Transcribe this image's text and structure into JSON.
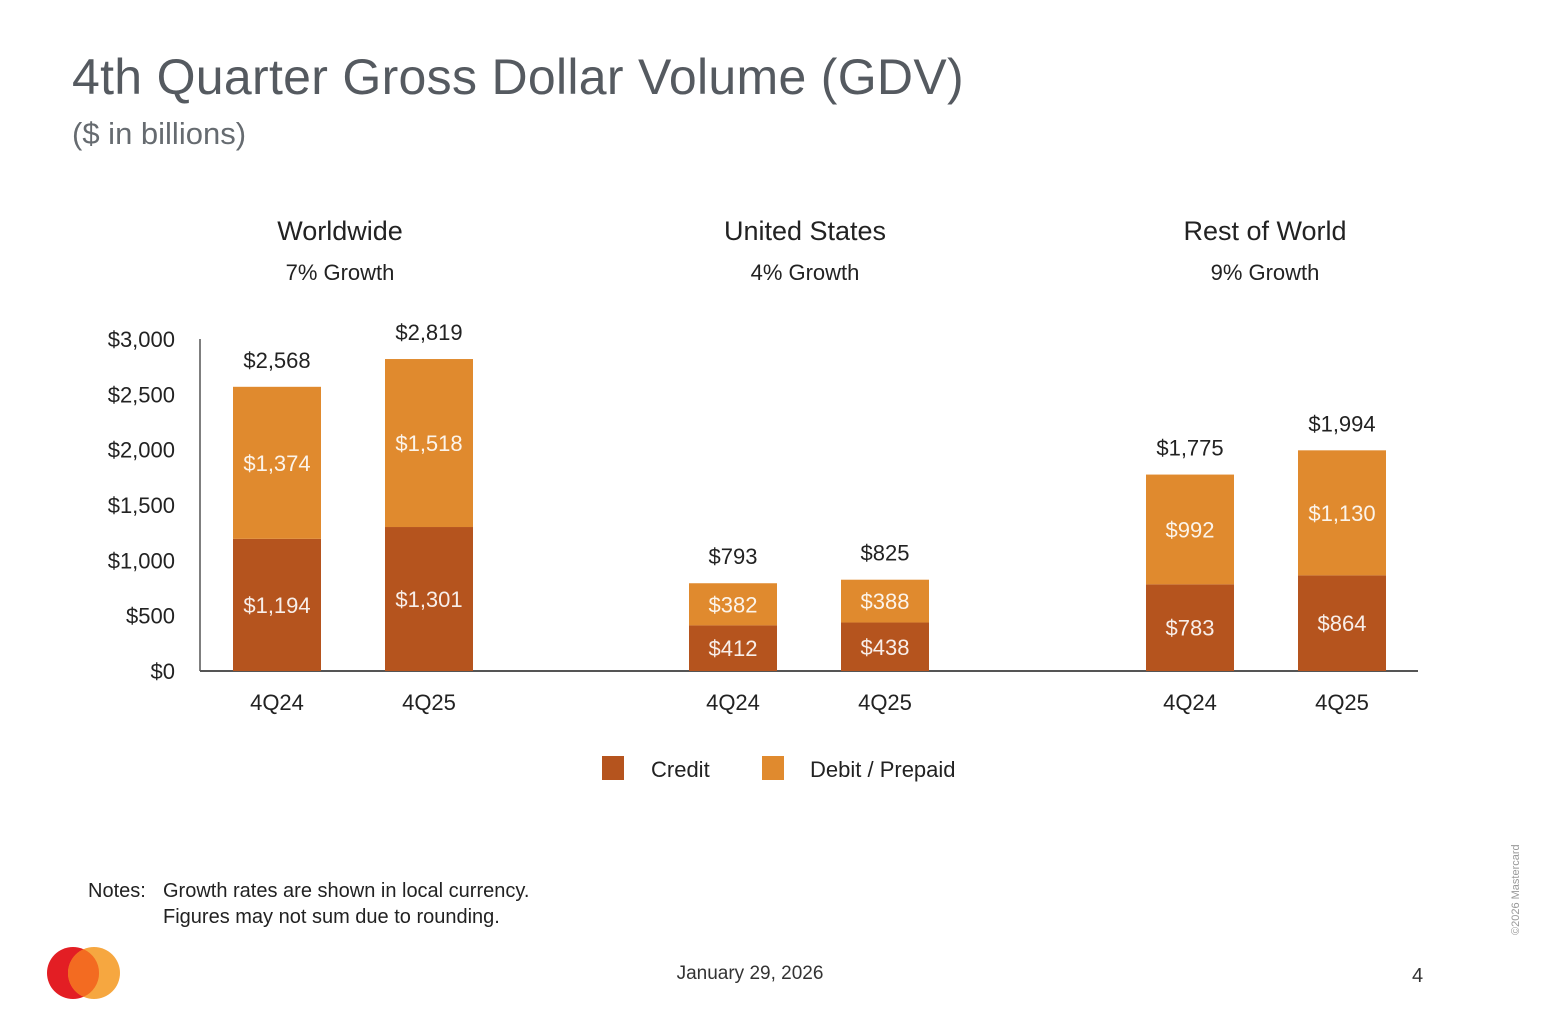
{
  "slide": {
    "title": "4th Quarter Gross Dollar Volume (GDV)",
    "subtitle": "($ in billions)",
    "notes_label": "Notes:",
    "notes": [
      "Growth rates are shown in local currency.",
      "Figures may not sum due to rounding."
    ],
    "date": "January 29, 2026",
    "page_number": "4",
    "copyright": "©2026 Mastercard",
    "logo": "mastercard-logo"
  },
  "colors": {
    "credit": "#b5541e",
    "debit": "#e08a2e",
    "axis": "#555555"
  },
  "chart_data": {
    "type": "bar",
    "stacked": true,
    "ylim": [
      0,
      3000
    ],
    "yticks": [
      "$0",
      "$500",
      "$1,000",
      "$1,500",
      "$2,000",
      "$2,500",
      "$3,000"
    ],
    "ytick_values": [
      0,
      500,
      1000,
      1500,
      2000,
      2500,
      3000
    ],
    "legend": [
      "Credit",
      "Debit / Prepaid"
    ],
    "legend_position": "bottom-center",
    "groups": [
      {
        "title": "Worldwide",
        "growth": "7% Growth",
        "categories": [
          "4Q24",
          "4Q25"
        ],
        "credit": [
          1194,
          1301
        ],
        "credit_labels": [
          "$1,194",
          "$1,301"
        ],
        "debit": [
          1374,
          1518
        ],
        "debit_labels": [
          "$1,374",
          "$1,518"
        ],
        "totals": [
          2568,
          2819
        ],
        "total_labels": [
          "$2,568",
          "$2,819"
        ]
      },
      {
        "title": "United States",
        "growth": "4% Growth",
        "categories": [
          "4Q24",
          "4Q25"
        ],
        "credit": [
          412,
          438
        ],
        "credit_labels": [
          "$412",
          "$438"
        ],
        "debit": [
          382,
          388
        ],
        "debit_labels": [
          "$382",
          "$388"
        ],
        "totals": [
          793,
          825
        ],
        "total_labels": [
          "$793",
          "$825"
        ]
      },
      {
        "title": "Rest of World",
        "growth": "9% Growth",
        "categories": [
          "4Q24",
          "4Q25"
        ],
        "credit": [
          783,
          864
        ],
        "credit_labels": [
          "$783",
          "$864"
        ],
        "debit": [
          992,
          1130
        ],
        "debit_labels": [
          "$992",
          "$1,130"
        ],
        "totals": [
          1775,
          1994
        ],
        "total_labels": [
          "$1,775",
          "$1,994"
        ]
      }
    ]
  }
}
